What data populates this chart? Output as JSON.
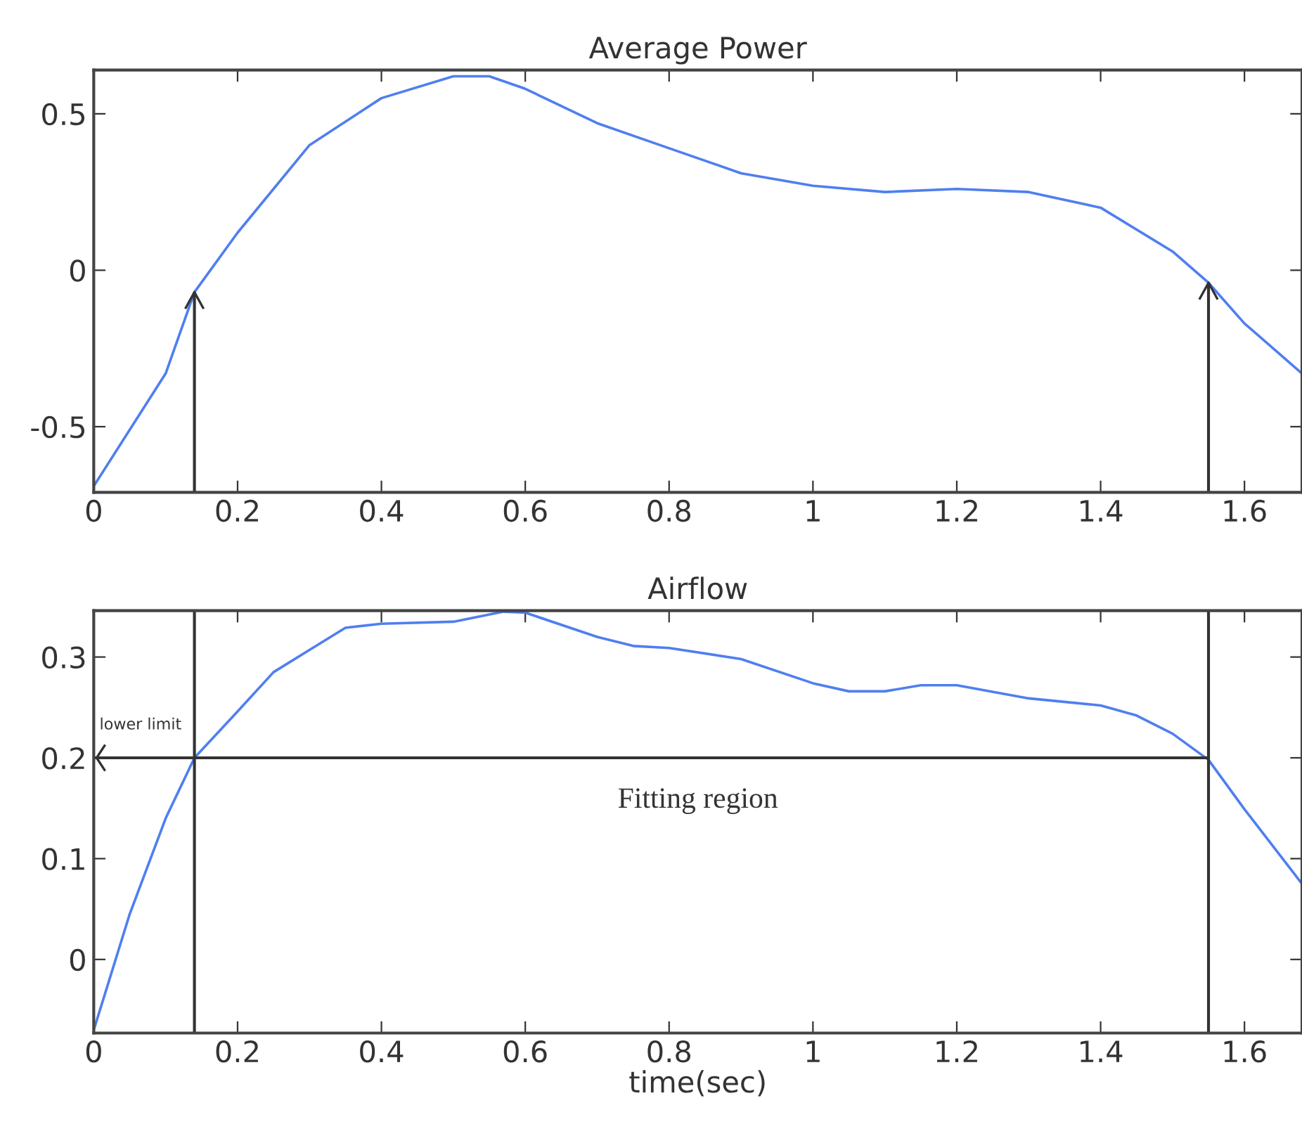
{
  "chart_data": [
    {
      "type": "line",
      "title": "Average Power",
      "x": [
        0,
        0.1,
        0.14,
        0.2,
        0.3,
        0.4,
        0.5,
        0.55,
        0.6,
        0.7,
        0.8,
        0.9,
        1.0,
        1.1,
        1.2,
        1.3,
        1.4,
        1.5,
        1.55,
        1.6,
        1.68
      ],
      "series": [
        {
          "color": "#4f7fef",
          "values": [
            -0.69,
            -0.33,
            -0.07,
            0.12,
            0.4,
            0.55,
            0.62,
            0.62,
            0.58,
            0.47,
            0.39,
            0.31,
            0.27,
            0.25,
            0.26,
            0.25,
            0.2,
            0.06,
            -0.04,
            -0.17,
            -0.33
          ]
        }
      ],
      "xlim": [
        0,
        1.68
      ],
      "xticks": [
        0,
        0.2,
        0.4,
        0.6,
        0.8,
        1,
        1.2,
        1.4,
        1.6
      ],
      "ylim": [
        -0.71,
        0.64
      ],
      "yticks": [
        -0.5,
        0,
        0.5
      ],
      "grid": false,
      "legend": false,
      "ref_lines": [
        {
          "axis": "x",
          "value": 0.14,
          "color": "#333333"
        },
        {
          "axis": "x",
          "value": 1.55,
          "color": "#333333"
        }
      ]
    },
    {
      "type": "line",
      "title": "Airflow",
      "xlabel": "time(sec)",
      "x": [
        0,
        0.05,
        0.1,
        0.14,
        0.2,
        0.25,
        0.3,
        0.35,
        0.4,
        0.5,
        0.57,
        0.6,
        0.7,
        0.75,
        0.8,
        0.9,
        1.0,
        1.05,
        1.1,
        1.15,
        1.2,
        1.3,
        1.4,
        1.45,
        1.5,
        1.55,
        1.6,
        1.68
      ],
      "series": [
        {
          "color": "#4f7fef",
          "values": [
            -0.07,
            0.045,
            0.14,
            0.2,
            0.246,
            0.285,
            0.307,
            0.329,
            0.333,
            0.335,
            0.345,
            0.344,
            0.32,
            0.311,
            0.309,
            0.298,
            0.274,
            0.266,
            0.266,
            0.272,
            0.272,
            0.259,
            0.252,
            0.242,
            0.224,
            0.198,
            0.149,
            0.075
          ]
        }
      ],
      "xlim": [
        0,
        1.68
      ],
      "xticks": [
        0,
        0.2,
        0.4,
        0.6,
        0.8,
        1,
        1.2,
        1.4,
        1.6
      ],
      "ylim": [
        -0.073,
        0.346
      ],
      "yticks": [
        0,
        0.1,
        0.2,
        0.3
      ],
      "grid": false,
      "legend": false,
      "ref_lines": [
        {
          "axis": "x",
          "value": 0.14,
          "color": "#333333"
        },
        {
          "axis": "x",
          "value": 1.55,
          "color": "#333333"
        },
        {
          "axis": "y",
          "value": 0.2,
          "label": "lower limit",
          "color": "#333333"
        }
      ],
      "annotations": [
        "Fitting region"
      ]
    }
  ]
}
